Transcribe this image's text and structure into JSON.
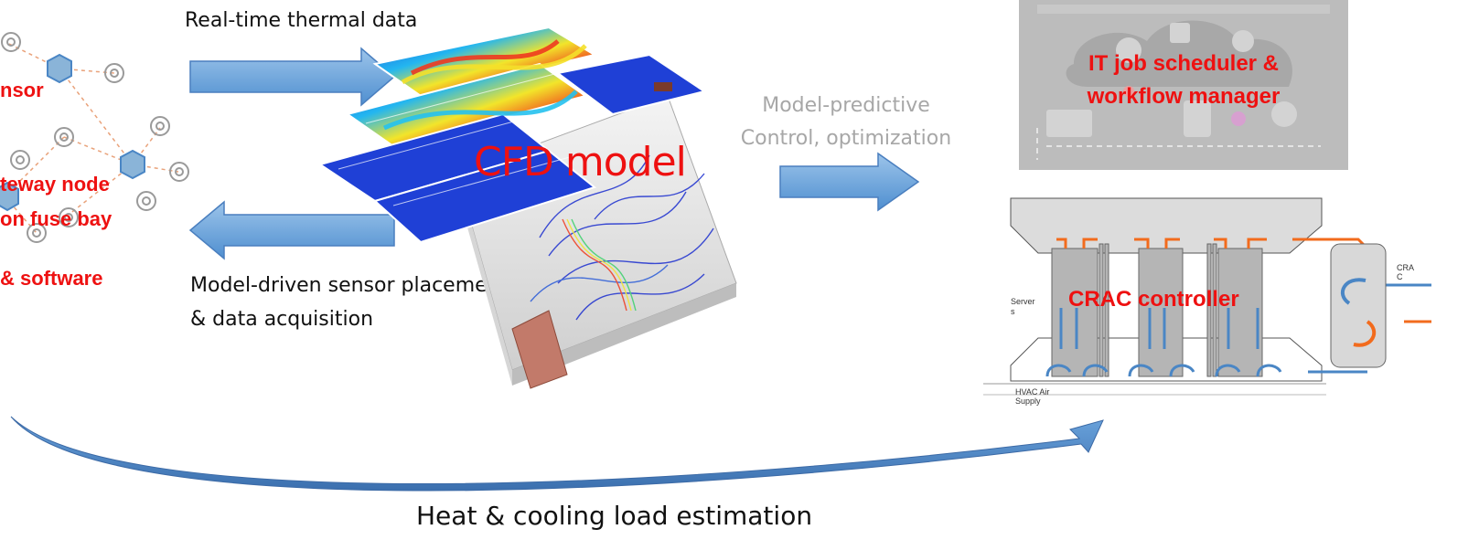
{
  "sensor_network": {
    "sensor_label": "nsor",
    "gateway_label_line1": "teway node",
    "gateway_label_line2": "on fuse bay",
    "software_label": "& software"
  },
  "arrows": {
    "top_label": "Real-time thermal data",
    "bottom_label_line1": "Model-driven sensor placement",
    "bottom_label_line2": "& data acquisition",
    "mpc_label_line1": "Model-predictive",
    "mpc_label_line2": "Control, optimization"
  },
  "cfd": {
    "label": "CFD model"
  },
  "scheduler": {
    "label_line1": "IT job scheduler &",
    "label_line2": "workflow manager"
  },
  "crac": {
    "label": "CRAC controller",
    "servers_label_line1": "Server",
    "servers_label_line2": "s",
    "crac_unit_line1": "CRA",
    "crac_unit_line2": "C",
    "hvac_line1": "HVAC Air",
    "hvac_line2": "Supply"
  },
  "footer": {
    "label": "Heat & cooling load estimation"
  },
  "colors": {
    "arrow_fill": "#5b9bd5",
    "highlight_red": "#ee1111",
    "hot_air": "#f26b1d",
    "cool_air": "#4a86c5"
  }
}
